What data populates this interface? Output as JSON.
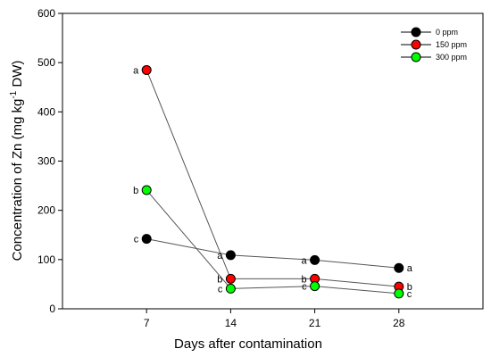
{
  "chart_data": {
    "type": "line",
    "xlabel": "Days after contamination",
    "ylabel_main": "Concentration of Zn (mg kg",
    "ylabel_sup": "-1",
    "ylabel_end": " DW)",
    "xlim": [
      0,
      35
    ],
    "ylim": [
      0,
      600
    ],
    "x": [
      7,
      14,
      21,
      28
    ],
    "x_ticks": [
      "7",
      "14",
      "21",
      "28"
    ],
    "y_ticks": [
      0,
      100,
      200,
      300,
      400,
      500,
      600
    ],
    "legend_position": "top-right",
    "series": [
      {
        "name": "0 ppm",
        "color": "#000000",
        "values": [
          142,
          109,
          99,
          83
        ],
        "labels": [
          "c",
          "a",
          "a",
          "a"
        ],
        "label_side": [
          "left",
          "left",
          "left",
          "right"
        ]
      },
      {
        "name": "150 ppm",
        "color": "#ff0000",
        "values": [
          485,
          61,
          61,
          45
        ],
        "labels": [
          "a",
          "b",
          "b",
          "b"
        ],
        "label_side": [
          "left",
          "left",
          "left",
          "right"
        ]
      },
      {
        "name": "300 ppm",
        "color": "#00ff00",
        "values": [
          241,
          41,
          46,
          31
        ],
        "labels": [
          "b",
          "c",
          "c",
          "c"
        ],
        "label_side": [
          "left",
          "left",
          "left",
          "right"
        ]
      }
    ]
  }
}
